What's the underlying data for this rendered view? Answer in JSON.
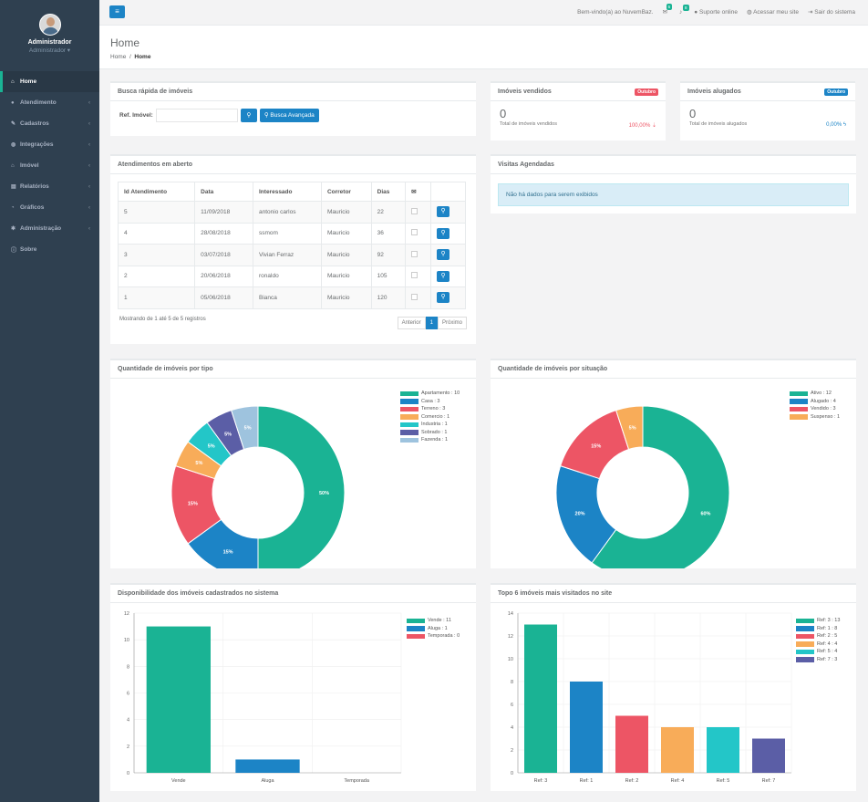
{
  "sidebar": {
    "user_name": "Administrador",
    "user_role": "Administrador ▾",
    "items": [
      {
        "label": "Home",
        "icon": "home-icon",
        "glyph": "⌂"
      },
      {
        "label": "Atendimento",
        "icon": "comments-icon",
        "glyph": "●"
      },
      {
        "label": "Cadastros",
        "icon": "wrench-icon",
        "glyph": "✎"
      },
      {
        "label": "Integrações",
        "icon": "globe-icon",
        "glyph": "◍"
      },
      {
        "label": "Imóvel",
        "icon": "home-icon",
        "glyph": "⌂"
      },
      {
        "label": "Relatórios",
        "icon": "book-icon",
        "glyph": "▤"
      },
      {
        "label": "Gráficos",
        "icon": "pie-chart-icon",
        "glyph": "◔"
      },
      {
        "label": "Administração",
        "icon": "cog-icon",
        "glyph": "✱"
      },
      {
        "label": "Sobre",
        "icon": "info-icon",
        "glyph": "ⓘ"
      }
    ]
  },
  "topbar": {
    "welcome": "Bem-vindo(a) ao NuvemBaz.",
    "mail_count": "6",
    "bell_count": "8",
    "support": "Suporte online",
    "site": "Acessar meu site",
    "logout": "Sair do sistema"
  },
  "header": {
    "title": "Home",
    "crumb_home": "Home",
    "crumb_current": "Home"
  },
  "search": {
    "title": "Busca rápida de imóveis",
    "ref_label": "Ref. Imóvel:",
    "value": "",
    "advanced": "Busca Avançada"
  },
  "sold": {
    "title": "Imóveis vendidos",
    "badge": "Outubro",
    "value": "0",
    "caption": "Total de imóveis vendidos",
    "pct": "100,00% ⇣"
  },
  "rented": {
    "title": "Imóveis alugados",
    "badge": "Outubro",
    "value": "0",
    "caption": "Total de imóveis alugados",
    "pct": "0,00% ϟ"
  },
  "attendances": {
    "title": "Atendimentos em aberto",
    "columns": [
      "Id Atendimento",
      "Data",
      "Interessado",
      "Corretor",
      "Dias",
      "✉"
    ],
    "rows": [
      [
        "5",
        "11/09/2018",
        "antonio carlos",
        "Mauricio",
        "22"
      ],
      [
        "4",
        "28/08/2018",
        "ssmom",
        "Mauricio",
        "36"
      ],
      [
        "3",
        "03/07/2018",
        "Vivian Ferraz",
        "Mauricio",
        "92"
      ],
      [
        "2",
        "20/06/2018",
        "ronaldo",
        "Mauricio",
        "105"
      ],
      [
        "1",
        "05/06/2018",
        "Bianca",
        "Mauricio",
        "120"
      ]
    ],
    "showing": "Mostrando de 1 até 5 de 5 registros",
    "prev": "Anterior",
    "page": "1",
    "next": "Próximo"
  },
  "visits": {
    "title": "Visitas Agendadas",
    "empty": "Não há dados para serem exibidos"
  },
  "colors": {
    "green": "#1ab394",
    "blue": "#1c84c6",
    "red": "#ed5565",
    "orange": "#f8ac59",
    "cyan": "#23c6c8",
    "purple": "#5b5ea6",
    "light": "#9ec3de"
  },
  "chart_data": [
    {
      "type": "pie",
      "title": "Quantidade de imóveis por tipo",
      "categories": [
        "Apartamento",
        "Casa",
        "Terreno",
        "Comercio",
        "Industria",
        "Sobrado",
        "Fazenda"
      ],
      "values": [
        10,
        3,
        3,
        1,
        1,
        1,
        1
      ],
      "legend": [
        "Apartamento : 10",
        "Casa : 3",
        "Terreno : 3",
        "Comercio : 1",
        "Industria : 1",
        "Sobrado : 1",
        "Fazenda : 1"
      ],
      "labels": [
        "50%",
        "15%",
        "15%",
        "5%",
        "5%",
        "5%",
        "5%"
      ],
      "colors": [
        "#1ab394",
        "#1c84c6",
        "#ed5565",
        "#f8ac59",
        "#23c6c8",
        "#5b5ea6",
        "#9ec3de"
      ]
    },
    {
      "type": "pie",
      "title": "Quantidade de imóveis por situação",
      "categories": [
        "Ativo",
        "Alugado",
        "Vendido",
        "Suspenso"
      ],
      "values": [
        12,
        4,
        3,
        1
      ],
      "legend": [
        "Ativo : 12",
        "Alugado : 4",
        "Vendido : 3",
        "Suspenso : 1"
      ],
      "labels": [
        "60%",
        "20%",
        "15%",
        "5%"
      ],
      "colors": [
        "#1ab394",
        "#1c84c6",
        "#ed5565",
        "#f8ac59"
      ]
    },
    {
      "type": "bar",
      "title": "Disponibilidade dos imóveis cadastrados no sistema",
      "categories": [
        "Vende",
        "Aluga",
        "Temporada"
      ],
      "values": [
        11,
        1,
        0
      ],
      "legend": [
        "Vende : 11",
        "Aluga : 1",
        "Temporada : 0"
      ],
      "ylim": [
        0,
        12
      ],
      "yticks": [
        "0",
        "2",
        "4",
        "6",
        "8",
        "10",
        "12"
      ],
      "colors": [
        "#1ab394",
        "#1c84c6",
        "#ed5565"
      ]
    },
    {
      "type": "bar",
      "title": "Topo 6 imóveis mais visitados no site",
      "categories": [
        "Ref: 3",
        "Ref: 1",
        "Ref: 2",
        "Ref: 4",
        "Ref: 5",
        "Ref: 7"
      ],
      "values": [
        13,
        8,
        5,
        4,
        4,
        3
      ],
      "legend": [
        "Ref: 3 : 13",
        "Ref: 1 : 8",
        "Ref: 2 : 5",
        "Ref: 4 : 4",
        "Ref: 5 : 4",
        "Ref: 7 : 3"
      ],
      "ylim": [
        0,
        14
      ],
      "yticks": [
        "0",
        "2",
        "4",
        "6",
        "8",
        "10",
        "12",
        "14"
      ],
      "colors": [
        "#1ab394",
        "#1c84c6",
        "#ed5565",
        "#f8ac59",
        "#23c6c8",
        "#5b5ea6"
      ]
    }
  ]
}
